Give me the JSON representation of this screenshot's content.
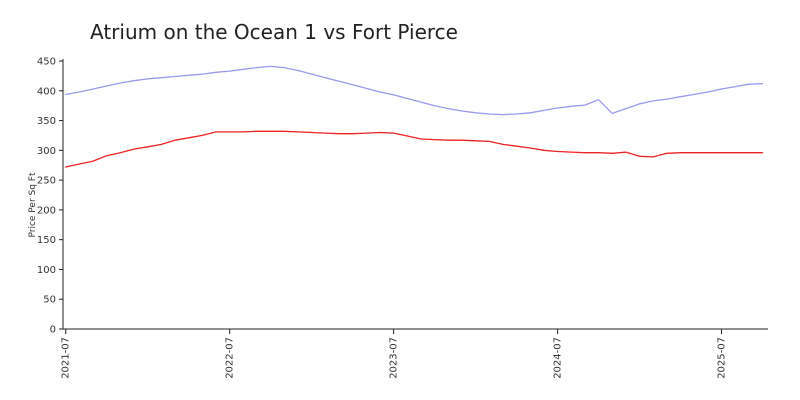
{
  "chart_data": {
    "type": "line",
    "title": "Atrium on the Ocean 1 vs Fort Pierce",
    "ylabel": "Price Per Sq Ft",
    "xlabel": "",
    "ylim": [
      0,
      450
    ],
    "yticks": [
      0,
      50,
      100,
      150,
      200,
      250,
      300,
      350,
      400,
      450
    ],
    "xlim": [
      "2021-07",
      "2025-10"
    ],
    "xticks": [
      "2021-07",
      "2022-07",
      "2023-07",
      "2024-07",
      "2025-07"
    ],
    "x": [
      "2021-07",
      "2021-08",
      "2021-09",
      "2021-10",
      "2021-11",
      "2021-12",
      "2022-01",
      "2022-02",
      "2022-03",
      "2022-04",
      "2022-05",
      "2022-06",
      "2022-07",
      "2022-08",
      "2022-09",
      "2022-10",
      "2022-11",
      "2022-12",
      "2023-01",
      "2023-02",
      "2023-03",
      "2023-04",
      "2023-05",
      "2023-06",
      "2023-07",
      "2023-08",
      "2023-09",
      "2023-10",
      "2023-11",
      "2023-12",
      "2024-01",
      "2024-02",
      "2024-03",
      "2024-04",
      "2024-05",
      "2024-06",
      "2024-07",
      "2024-08",
      "2024-09",
      "2024-10",
      "2024-11",
      "2024-12",
      "2025-01",
      "2025-02",
      "2025-03",
      "2025-04",
      "2025-05",
      "2025-06",
      "2025-07",
      "2025-08",
      "2025-09",
      "2025-10"
    ],
    "series": [
      {
        "color": "#9999ee",
        "values": [
          394,
          398,
          403,
          408,
          413,
          417,
          420,
          422,
          424,
          426,
          428,
          431,
          433,
          436,
          439,
          441,
          439,
          434,
          428,
          422,
          416,
          410,
          404,
          398,
          393,
          387,
          381,
          375,
          370,
          366,
          363,
          361,
          360,
          361,
          363,
          367,
          371,
          374,
          376,
          385,
          362,
          370,
          378,
          383,
          386,
          390,
          394,
          398,
          403,
          407,
          411,
          412
        ]
      },
      {
        "color": "#ee2222",
        "values": [
          272,
          277,
          282,
          291,
          296,
          302,
          306,
          310,
          317,
          321,
          325,
          331,
          331,
          331,
          332,
          332,
          332,
          331,
          330,
          329,
          328,
          328,
          329,
          330,
          329,
          324,
          319,
          318,
          317,
          317,
          316,
          315,
          310,
          307,
          304,
          300,
          298,
          297,
          296,
          296,
          295,
          297,
          290,
          289,
          295,
          296,
          296,
          296,
          296,
          296,
          296,
          296
        ]
      }
    ],
    "grid": false,
    "legend": "none"
  }
}
